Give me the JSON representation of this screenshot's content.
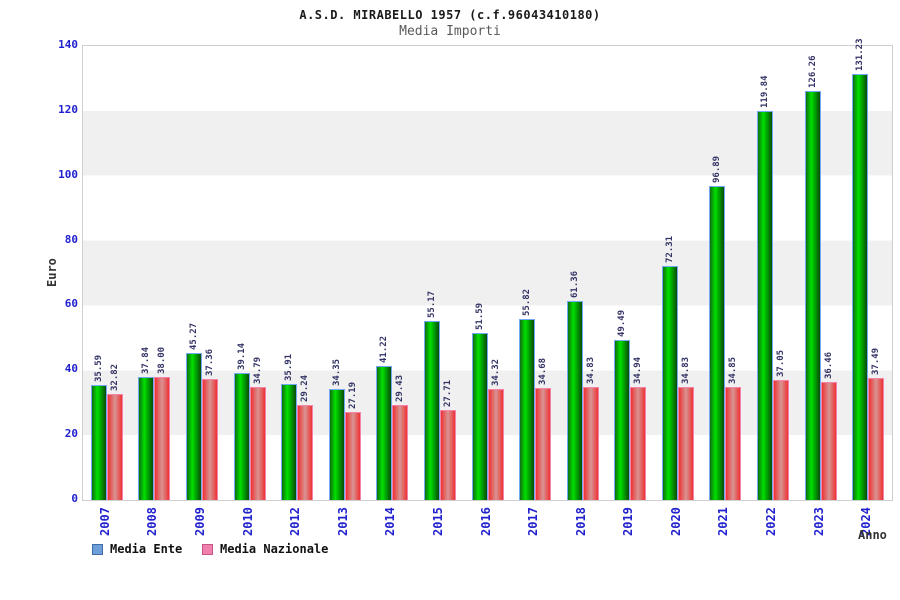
{
  "header": {
    "title": "A.S.D. MIRABELLO 1957 (c.f.96043410180)",
    "subtitle": "Media Importi"
  },
  "chart_data": {
    "type": "bar",
    "title": "A.S.D. MIRABELLO 1957 (c.f.96043410180)",
    "subtitle": "Media Importi",
    "xlabel": "Anno",
    "ylabel": "Euro",
    "ylim": [
      0,
      140
    ],
    "ytick_step": 20,
    "grid": "alternating-horizontal-bands",
    "legend_position": "bottom-left",
    "categories": [
      "2007",
      "2008",
      "2009",
      "2010",
      "2012",
      "2013",
      "2014",
      "2015",
      "2016",
      "2017",
      "2018",
      "2019",
      "2020",
      "2021",
      "2022",
      "2023",
      "2024"
    ],
    "series": [
      {
        "name": "Media Ente",
        "values": [
          35.59,
          37.84,
          45.27,
          39.14,
          35.91,
          34.35,
          41.22,
          55.17,
          51.59,
          55.82,
          61.36,
          49.49,
          72.31,
          96.89,
          119.84,
          126.26,
          131.23
        ],
        "labels": [
          "35.59",
          "37.84",
          "45.27",
          "39.14",
          "35.91",
          "34.35",
          "41.22",
          "55.17",
          "51.59",
          "55.82",
          "61.36",
          "49.49",
          "72.31",
          "96.89",
          "119.84",
          "126.26",
          "131.23"
        ]
      },
      {
        "name": "Media Nazionale",
        "values": [
          32.82,
          38.0,
          37.36,
          34.79,
          29.24,
          27.19,
          29.43,
          27.71,
          34.32,
          34.68,
          34.83,
          34.94,
          34.83,
          34.85,
          37.05,
          36.46,
          37.49
        ],
        "labels": [
          "32.82",
          "38.00",
          "37.36",
          "34.79",
          "29.24",
          "27.19",
          "29.43",
          "27.71",
          "34.32",
          "34.68",
          "34.83",
          "34.94",
          "34.83",
          "34.85",
          "37.05",
          "36.46",
          "37.49"
        ]
      }
    ]
  },
  "legend": {
    "items": [
      {
        "label": "Media Ente",
        "swatch": "blue-square"
      },
      {
        "label": "Media Nazionale",
        "swatch": "pink-square"
      }
    ]
  },
  "colors": {
    "tick_label": "#2121cd",
    "value_label": "#333366",
    "title": "#1a1a1a",
    "subtitle": "#5a5a5a",
    "axis_title": "#333333",
    "band_gray": "#f0f0f0",
    "band_white": "#ffffff",
    "plot_border": "#cfcfcf",
    "bar_ente_mid": "#00e000",
    "bar_ente_edge": "#0a4a0a",
    "bar_ente_border": "#74aaf5",
    "bar_naz_edge": "#ee3333",
    "bar_naz_mid": "#d99494",
    "bar_naz_border": "#f584ad",
    "legend_ente_fill": "#6d9ed9",
    "legend_ente_border": "#3f6ea6",
    "legend_naz_fill": "#ef7fab",
    "legend_naz_border": "#c65487"
  }
}
